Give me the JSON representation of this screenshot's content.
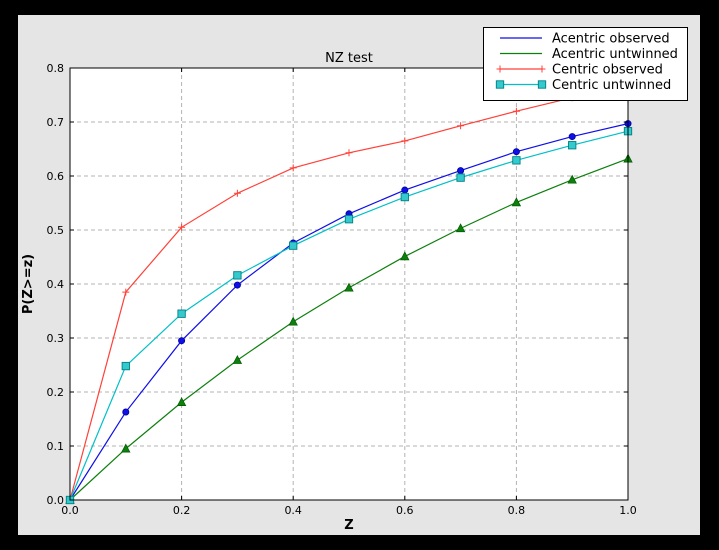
{
  "colors": {
    "window_bg": "#000000",
    "figure_bg": "#e5e5e5",
    "plot_bg": "#ffffff",
    "grid": "#b3b3b3",
    "spine": "#000000",
    "tick": "#000000",
    "legend_bg": "#ffffff",
    "legend_border": "#000000"
  },
  "chart_data": {
    "type": "line",
    "title": "NZ test",
    "xlabel": "Z",
    "ylabel": "P(Z>=z)",
    "xlim": [
      0.0,
      1.0
    ],
    "ylim": [
      0.0,
      0.8
    ],
    "xticks": [
      0.0,
      0.2,
      0.4,
      0.6,
      0.8,
      1.0
    ],
    "yticks": [
      0.0,
      0.1,
      0.2,
      0.3,
      0.4,
      0.5,
      0.6,
      0.7,
      0.8
    ],
    "grid": "dashed, light gray, at interior ticks",
    "legend_position": "upper right",
    "x": [
      0.0,
      0.1,
      0.2,
      0.3,
      0.4,
      0.5,
      0.6,
      0.7,
      0.8,
      0.9,
      1.0
    ],
    "series": [
      {
        "name": "Acentric observed",
        "color": "#0f0fe8",
        "marker": "circle",
        "marker_fill": "#0f0fe8",
        "marker_edge": "#0000a0",
        "legend_sample_markers": false,
        "values": [
          0.0,
          0.163,
          0.295,
          0.398,
          0.476,
          0.53,
          0.574,
          0.61,
          0.645,
          0.673,
          0.697
        ]
      },
      {
        "name": "Acentric untwinned",
        "color": "#0c7f0c",
        "marker": "triangle",
        "marker_fill": "#0c7f0c",
        "marker_edge": "#005a00",
        "legend_sample_markers": false,
        "values": [
          0.0,
          0.095,
          0.181,
          0.259,
          0.33,
          0.393,
          0.451,
          0.503,
          0.551,
          0.593,
          0.632
        ]
      },
      {
        "name": "Centric observed",
        "color": "#ff4138",
        "marker": "plus",
        "marker_fill": "#ff4138",
        "marker_edge": "#ff4138",
        "legend_sample_markers": true,
        "values": [
          0.0,
          0.385,
          0.505,
          0.568,
          0.615,
          0.643,
          0.665,
          0.693,
          0.72,
          0.745,
          0.768
        ]
      },
      {
        "name": "Centric untwinned",
        "color": "#00c0c8",
        "marker": "square",
        "marker_fill": "#33c9cf",
        "marker_edge": "#008080",
        "legend_sample_markers": true,
        "values": [
          0.0,
          0.248,
          0.345,
          0.416,
          0.471,
          0.52,
          0.561,
          0.597,
          0.629,
          0.657,
          0.683
        ]
      }
    ]
  }
}
